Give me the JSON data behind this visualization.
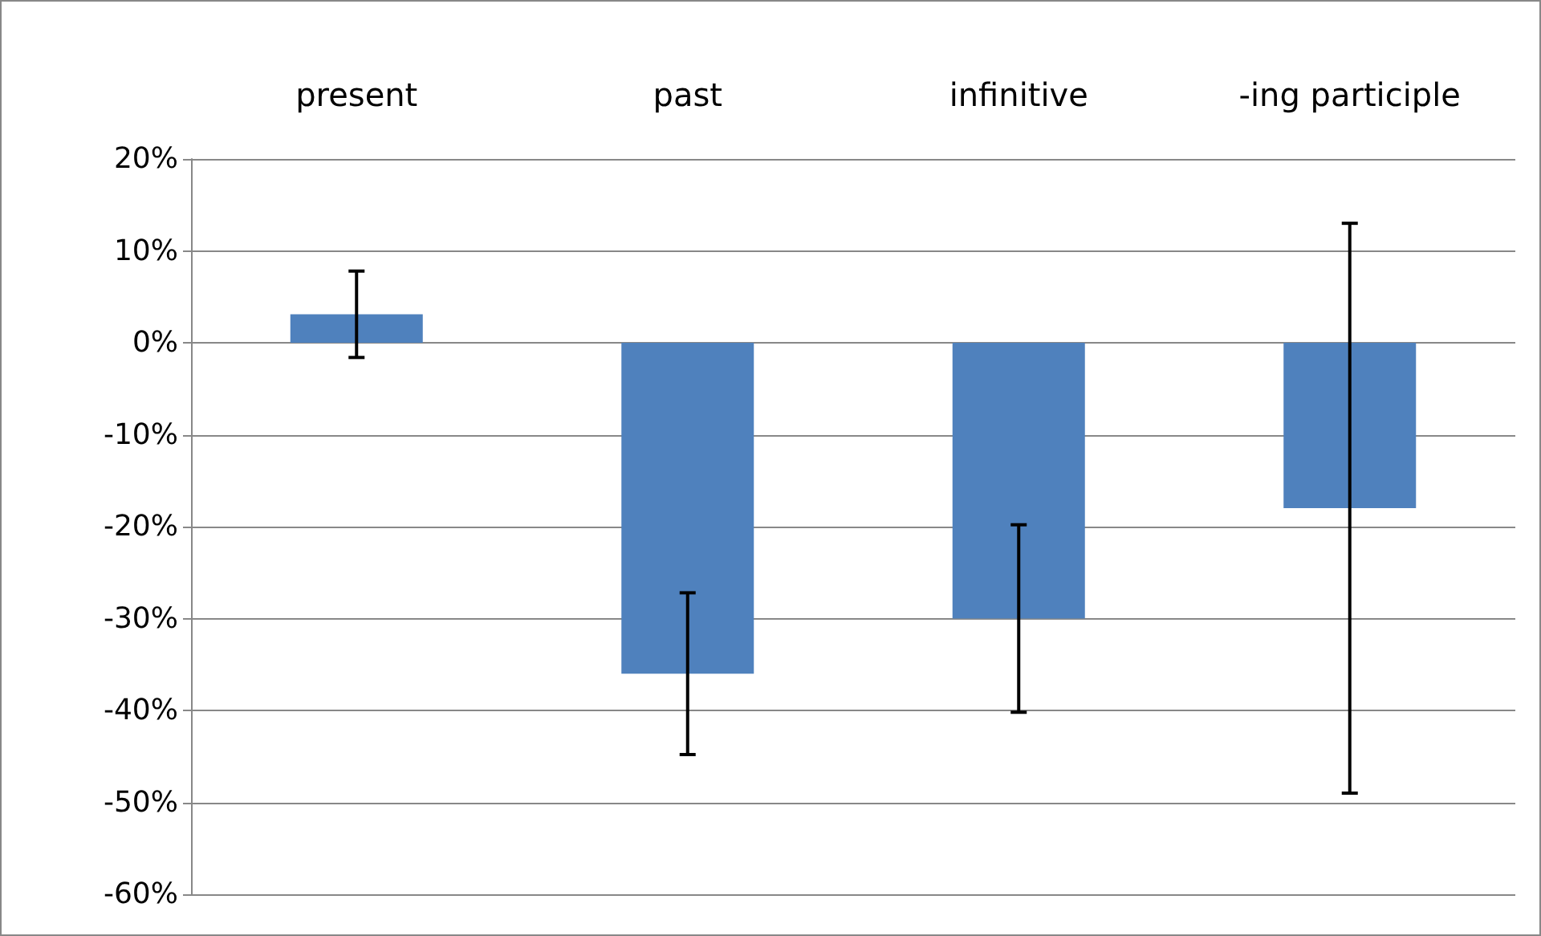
{
  "chart_data": {
    "type": "bar",
    "categories": [
      "present",
      "past",
      "infinitive",
      "-ing participle"
    ],
    "values": [
      3.1,
      -36,
      -30,
      -18
    ],
    "errors": [
      4.7,
      8.8,
      10.2,
      31
    ],
    "color": "#4f81bd",
    "ylim": [
      -60,
      20
    ],
    "yticks": [
      {
        "value": -60,
        "label": "-60%"
      },
      {
        "value": -50,
        "label": "-50%"
      },
      {
        "value": -40,
        "label": "-40%"
      },
      {
        "value": -30,
        "label": "-30%"
      },
      {
        "value": -20,
        "label": "-20%"
      },
      {
        "value": -10,
        "label": "-10%"
      },
      {
        "value": 0,
        "label": "0%"
      },
      {
        "value": 10,
        "label": "10%"
      },
      {
        "value": 20,
        "label": "20%"
      }
    ],
    "grid": "y"
  }
}
